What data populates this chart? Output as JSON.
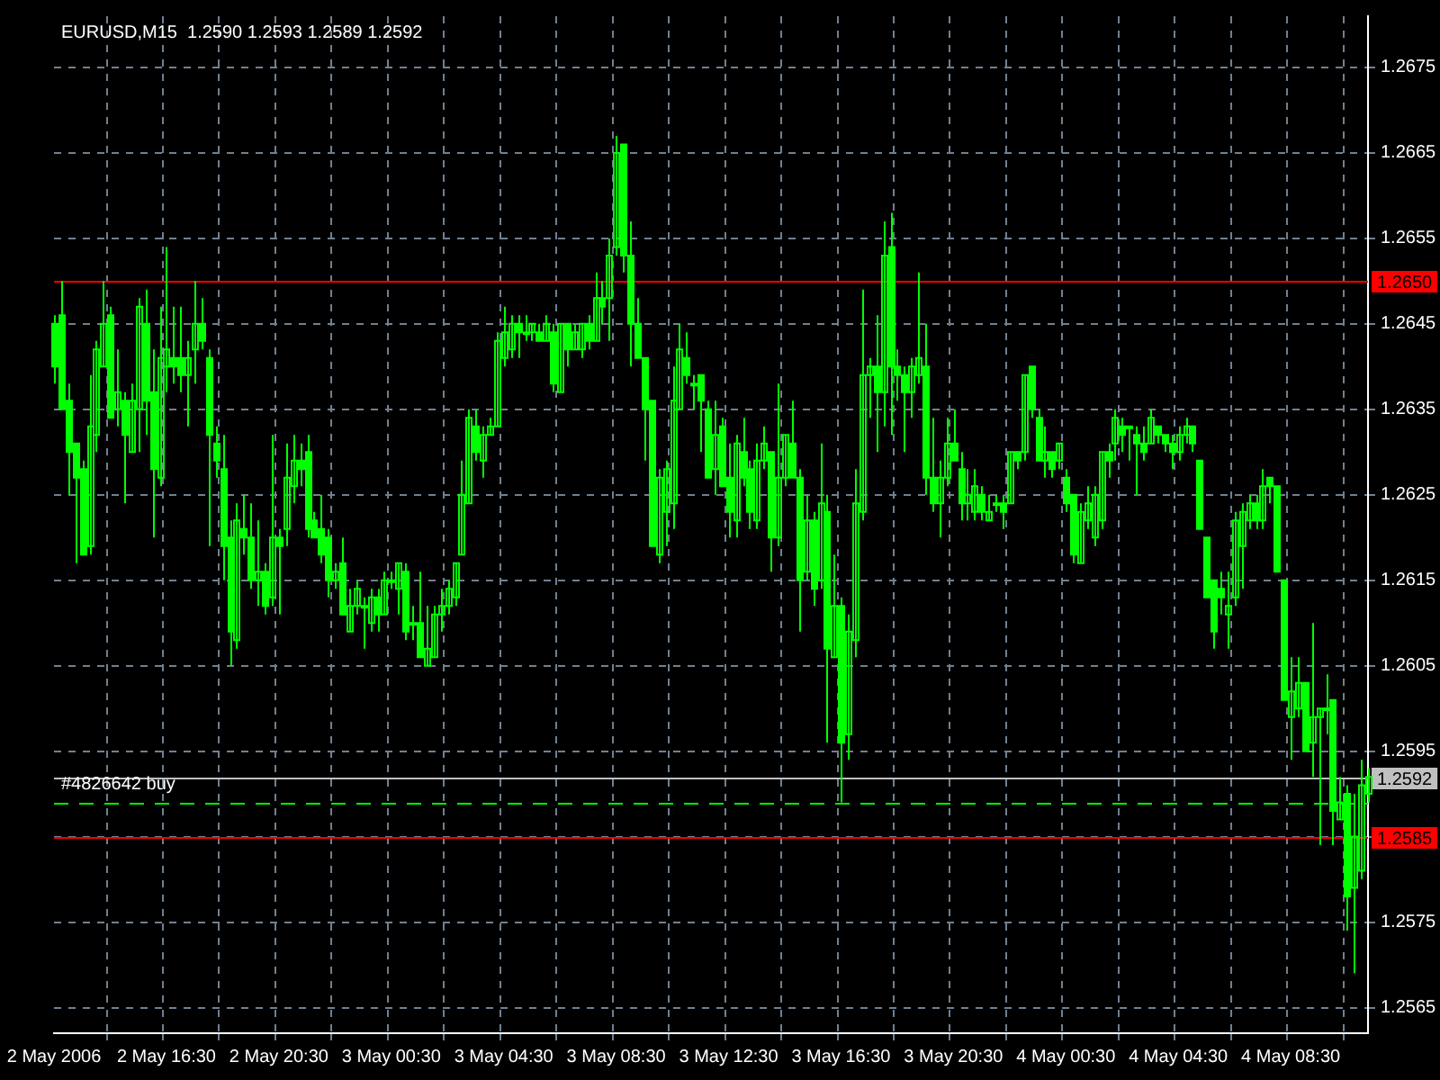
{
  "chart_data": {
    "type": "candlestick",
    "title": "EURUSD,M15  1.2590 1.2593 1.2589 1.2592",
    "categories": [
      "2 May 2006",
      null,
      null,
      null,
      null,
      null,
      null,
      null,
      null,
      null,
      null,
      null,
      null,
      null,
      null,
      null,
      "2 May 16:30",
      null,
      null,
      null,
      null,
      null,
      null,
      null,
      null,
      null,
      null,
      null,
      null,
      null,
      null,
      null,
      "2 May 20:30",
      null,
      null,
      null,
      null,
      null,
      null,
      null,
      null,
      null,
      null,
      null,
      null,
      null,
      null,
      null,
      "3 May 00:30",
      null,
      null,
      null,
      null,
      null,
      null,
      null,
      null,
      null,
      null,
      null,
      null,
      null,
      null,
      null,
      "3 May 04:30",
      null,
      null,
      null,
      null,
      null,
      null,
      null,
      null,
      null,
      null,
      null,
      null,
      null,
      null,
      null,
      "3 May 08:30",
      null,
      null,
      null,
      null,
      null,
      null,
      null,
      null,
      null,
      null,
      null,
      null,
      null,
      null,
      null,
      "3 May 12:30",
      null,
      null,
      null,
      null,
      null,
      null,
      null,
      null,
      null,
      null,
      null,
      null,
      null,
      null,
      null,
      "3 May 16:30",
      null,
      null,
      null,
      null,
      null,
      null,
      null,
      null,
      null,
      null,
      null,
      null,
      null,
      null,
      null,
      "3 May 20:30",
      null,
      null,
      null,
      null,
      null,
      null,
      null,
      null,
      null,
      null,
      null,
      null,
      null,
      null,
      null,
      "4 May 00:30",
      null,
      null,
      null,
      null,
      null,
      null,
      null,
      null,
      null,
      null,
      null,
      null,
      null,
      null,
      null,
      "4 May 04:30",
      null,
      null,
      null,
      null,
      null,
      null,
      null,
      null,
      null,
      null,
      null,
      null,
      null,
      null,
      null,
      "4 May 08:30",
      null,
      null,
      null,
      null,
      null,
      null,
      null,
      null,
      null,
      null,
      null
    ],
    "color": "#00ff00",
    "ohlc": [
      [
        1.2645,
        1.2646,
        1.2638,
        1.264
      ],
      [
        1.2646,
        1.265,
        1.2635,
        1.2635
      ],
      [
        1.2636,
        1.2638,
        1.2625,
        1.263
      ],
      [
        1.2631,
        1.2631,
        1.2617,
        1.2627
      ],
      [
        1.2628,
        1.2629,
        1.2618,
        1.2618
      ],
      [
        1.2619,
        1.2639,
        1.2618,
        1.2633
      ],
      [
        1.2632,
        1.2643,
        1.263,
        1.2642
      ],
      [
        1.264,
        1.265,
        1.264,
        1.2645
      ],
      [
        1.2646,
        1.2647,
        1.2634,
        1.2634
      ],
      [
        1.2635,
        1.2642,
        1.2633,
        1.2637
      ],
      [
        1.2636,
        1.2637,
        1.2624,
        1.2632
      ],
      [
        1.263,
        1.2638,
        1.263,
        1.2636
      ],
      [
        1.2635,
        1.2648,
        1.263,
        1.2647
      ],
      [
        1.2645,
        1.2649,
        1.2632,
        1.2636
      ],
      [
        1.2637,
        1.2642,
        1.262,
        1.2628
      ],
      [
        1.2627,
        1.2647,
        1.2626,
        1.2641
      ],
      [
        1.264,
        1.2654,
        1.2637,
        1.2642
      ],
      [
        1.2641,
        1.2647,
        1.2638,
        1.264
      ],
      [
        1.2641,
        1.2647,
        1.2637,
        1.2639
      ],
      [
        1.2639,
        1.2643,
        1.2633,
        1.2641
      ],
      [
        1.2642,
        1.265,
        1.2638,
        1.2645
      ],
      [
        1.2645,
        1.2648,
        1.2642,
        1.2643
      ],
      [
        1.2641,
        1.2642,
        1.2619,
        1.2632
      ],
      [
        1.2631,
        1.2633,
        1.2627,
        1.2629
      ],
      [
        1.2628,
        1.2632,
        1.2615,
        1.2619
      ],
      [
        1.262,
        1.2622,
        1.2605,
        1.2609
      ],
      [
        1.2608,
        1.2624,
        1.2607,
        1.2622
      ],
      [
        1.2621,
        1.2625,
        1.2618,
        1.262
      ],
      [
        1.262,
        1.2624,
        1.2614,
        1.2615
      ],
      [
        1.2615,
        1.2622,
        1.2612,
        1.2616
      ],
      [
        1.2616,
        1.2617,
        1.2611,
        1.2612
      ],
      [
        1.2613,
        1.2632,
        1.2612,
        1.262
      ],
      [
        1.262,
        1.2621,
        1.2611,
        1.2619
      ],
      [
        1.2621,
        1.2631,
        1.2619,
        1.2627
      ],
      [
        1.2626,
        1.2632,
        1.2624,
        1.2629
      ],
      [
        1.2629,
        1.2631,
        1.2626,
        1.2628
      ],
      [
        1.263,
        1.2632,
        1.262,
        1.2621
      ],
      [
        1.2622,
        1.2623,
        1.262,
        1.262
      ],
      [
        1.2621,
        1.2625,
        1.2617,
        1.2618
      ],
      [
        1.262,
        1.2621,
        1.2613,
        1.2615
      ],
      [
        1.2615,
        1.2617,
        1.2614,
        1.2616
      ],
      [
        1.2617,
        1.262,
        1.2611,
        1.2611
      ],
      [
        1.2609,
        1.2614,
        1.2609,
        1.2612
      ],
      [
        1.2612,
        1.2615,
        1.2611,
        1.2614
      ],
      [
        1.2612,
        1.2613,
        1.2607,
        1.2612
      ],
      [
        1.261,
        1.2614,
        1.2609,
        1.2613
      ],
      [
        1.2613,
        1.2614,
        1.2609,
        1.2611
      ],
      [
        1.2611,
        1.2616,
        1.2611,
        1.2615
      ],
      [
        1.2615,
        1.2616,
        1.2614,
        1.2615
      ],
      [
        1.2614,
        1.2617,
        1.2611,
        1.2617
      ],
      [
        1.2616,
        1.2617,
        1.2608,
        1.2609
      ],
      [
        1.261,
        1.2612,
        1.2608,
        1.261
      ],
      [
        1.261,
        1.2616,
        1.2606,
        1.2606
      ],
      [
        1.2605,
        1.2612,
        1.2605,
        1.2607
      ],
      [
        1.2606,
        1.2612,
        1.2606,
        1.2611
      ],
      [
        1.2611,
        1.2614,
        1.2609,
        1.2612
      ],
      [
        1.2612,
        1.2615,
        1.2611,
        1.2614
      ],
      [
        1.2613,
        1.2617,
        1.2612,
        1.2617
      ],
      [
        1.2618,
        1.2629,
        1.2618,
        1.2625
      ],
      [
        1.2624,
        1.2635,
        1.2624,
        1.2634
      ],
      [
        1.2633,
        1.2635,
        1.2629,
        1.263
      ],
      [
        1.2629,
        1.2633,
        1.2627,
        1.2632
      ],
      [
        1.2632,
        1.2634,
        1.2632,
        1.2633
      ],
      [
        1.2633,
        1.2644,
        1.2633,
        1.2643
      ],
      [
        1.2641,
        1.2647,
        1.264,
        1.2644
      ],
      [
        1.2642,
        1.2646,
        1.2641,
        1.2645
      ],
      [
        1.2645,
        1.2646,
        1.2641,
        1.2644
      ],
      [
        1.2644,
        1.2646,
        1.2643,
        1.2644
      ],
      [
        1.2644,
        1.2645,
        1.2643,
        1.2645
      ],
      [
        1.2644,
        1.2645,
        1.2643,
        1.2643
      ],
      [
        1.2643,
        1.2646,
        1.2643,
        1.2645
      ],
      [
        1.2644,
        1.2645,
        1.2637,
        1.2638
      ],
      [
        1.2637,
        1.2645,
        1.2637,
        1.2645
      ],
      [
        1.2645,
        1.2645,
        1.264,
        1.2642
      ],
      [
        1.2642,
        1.2645,
        1.2642,
        1.2644
      ],
      [
        1.2642,
        1.2645,
        1.2641,
        1.2645
      ],
      [
        1.2645,
        1.2646,
        1.2642,
        1.2643
      ],
      [
        1.2643,
        1.2651,
        1.2643,
        1.2648
      ],
      [
        1.2648,
        1.265,
        1.2645,
        1.2647
      ],
      [
        1.2648,
        1.2655,
        1.2643,
        1.2653
      ],
      [
        1.2654,
        1.2667,
        1.2653,
        1.2665
      ],
      [
        1.2666,
        1.2666,
        1.2651,
        1.2653
      ],
      [
        1.2653,
        1.2657,
        1.264,
        1.2645
      ],
      [
        1.2645,
        1.2648,
        1.2641,
        1.2641
      ],
      [
        1.2641,
        1.2641,
        1.2629,
        1.2635
      ],
      [
        1.2636,
        1.2636,
        1.2619,
        1.2619
      ],
      [
        1.2618,
        1.2628,
        1.2617,
        1.2627
      ],
      [
        1.2623,
        1.2629,
        1.2619,
        1.2628
      ],
      [
        1.2624,
        1.264,
        1.2621,
        1.2636
      ],
      [
        1.2635,
        1.2645,
        1.2635,
        1.2642
      ],
      [
        1.2641,
        1.2644,
        1.2638,
        1.2639
      ],
      [
        1.2638,
        1.2639,
        1.2635,
        1.2638
      ],
      [
        1.2639,
        1.2639,
        1.263,
        1.2636
      ],
      [
        1.2635,
        1.2636,
        1.2627,
        1.2627
      ],
      [
        1.2628,
        1.2636,
        1.2625,
        1.2632
      ],
      [
        1.2633,
        1.2634,
        1.2626,
        1.2626
      ],
      [
        1.2627,
        1.2631,
        1.262,
        1.2623
      ],
      [
        1.2622,
        1.2632,
        1.262,
        1.2631
      ],
      [
        1.263,
        1.2634,
        1.2626,
        1.2627
      ],
      [
        1.2628,
        1.2629,
        1.2621,
        1.2623
      ],
      [
        1.2622,
        1.2631,
        1.2621,
        1.2629
      ],
      [
        1.2629,
        1.2633,
        1.2628,
        1.2631
      ],
      [
        1.263,
        1.263,
        1.2616,
        1.262
      ],
      [
        1.262,
        1.2638,
        1.2619,
        1.2627
      ],
      [
        1.2627,
        1.2632,
        1.2626,
        1.2632
      ],
      [
        1.2631,
        1.2636,
        1.2627,
        1.2627
      ],
      [
        1.2627,
        1.2628,
        1.2609,
        1.2615
      ],
      [
        1.2616,
        1.2625,
        1.2615,
        1.2622
      ],
      [
        1.2622,
        1.2623,
        1.2612,
        1.2614
      ],
      [
        1.2615,
        1.2631,
        1.2614,
        1.2624
      ],
      [
        1.2623,
        1.2625,
        1.2596,
        1.2607
      ],
      [
        1.2606,
        1.2618,
        1.2606,
        1.2612
      ],
      [
        1.2612,
        1.2613,
        1.2589,
        1.2596
      ],
      [
        1.2597,
        1.2611,
        1.2594,
        1.2609
      ],
      [
        1.2608,
        1.2628,
        1.2606,
        1.2624
      ],
      [
        1.2623,
        1.2649,
        1.2622,
        1.2639
      ],
      [
        1.2639,
        1.2641,
        1.2634,
        1.264
      ],
      [
        1.264,
        1.2646,
        1.263,
        1.2637
      ],
      [
        1.2637,
        1.2657,
        1.2633,
        1.2653
      ],
      [
        1.2654,
        1.2658,
        1.2632,
        1.264
      ],
      [
        1.264,
        1.2642,
        1.2636,
        1.2639
      ],
      [
        1.2639,
        1.264,
        1.263,
        1.2637
      ],
      [
        1.2637,
        1.2641,
        1.2634,
        1.264
      ],
      [
        1.2639,
        1.2651,
        1.2638,
        1.2641
      ],
      [
        1.264,
        1.2645,
        1.2625,
        1.2627
      ],
      [
        1.2627,
        1.2634,
        1.2623,
        1.2624
      ],
      [
        1.2624,
        1.2629,
        1.262,
        1.2627
      ],
      [
        1.2627,
        1.2634,
        1.2626,
        1.2631
      ],
      [
        1.2631,
        1.2635,
        1.2629,
        1.2629
      ],
      [
        1.2628,
        1.263,
        1.2622,
        1.2624
      ],
      [
        1.2624,
        1.2628,
        1.2622,
        1.2625
      ],
      [
        1.2623,
        1.2628,
        1.2622,
        1.2626
      ],
      [
        1.2625,
        1.2626,
        1.2622,
        1.2623
      ],
      [
        1.2622,
        1.2625,
        1.2622,
        1.2623
      ],
      [
        1.2624,
        1.2625,
        1.2623,
        1.2624
      ],
      [
        1.2624,
        1.2625,
        1.2621,
        1.2623
      ],
      [
        1.2624,
        1.263,
        1.2624,
        1.263
      ],
      [
        1.263,
        1.263,
        1.2628,
        1.2629
      ],
      [
        1.263,
        1.2639,
        1.2629,
        1.2639
      ],
      [
        1.264,
        1.264,
        1.2634,
        1.2635
      ],
      [
        1.2634,
        1.2635,
        1.2629,
        1.2629
      ],
      [
        1.2629,
        1.2633,
        1.2627,
        1.263
      ],
      [
        1.263,
        1.263,
        1.2627,
        1.2628
      ],
      [
        1.2629,
        1.2631,
        1.2628,
        1.2631
      ],
      [
        1.2627,
        1.2628,
        1.2623,
        1.2624
      ],
      [
        1.2625,
        1.2625,
        1.2617,
        1.2618
      ],
      [
        1.2617,
        1.2624,
        1.2617,
        1.2623
      ],
      [
        1.2622,
        1.2626,
        1.2621,
        1.2624
      ],
      [
        1.262,
        1.2626,
        1.2619,
        1.2625
      ],
      [
        1.2622,
        1.263,
        1.2621,
        1.263
      ],
      [
        1.263,
        1.2631,
        1.2627,
        1.2629
      ],
      [
        1.2631,
        1.2635,
        1.2629,
        1.2634
      ],
      [
        1.2633,
        1.2634,
        1.263,
        1.2632
      ],
      [
        1.2633,
        1.2633,
        1.2629,
        1.2633
      ],
      [
        1.2632,
        1.2633,
        1.2625,
        1.2631
      ],
      [
        1.2631,
        1.2633,
        1.2629,
        1.263
      ],
      [
        1.2631,
        1.2635,
        1.2631,
        1.2634
      ],
      [
        1.2633,
        1.2633,
        1.2631,
        1.2632
      ],
      [
        1.2632,
        1.2632,
        1.263,
        1.2631
      ],
      [
        1.2631,
        1.2632,
        1.2628,
        1.263
      ],
      [
        1.263,
        1.2633,
        1.2629,
        1.2632
      ],
      [
        1.2632,
        1.2634,
        1.2631,
        1.2633
      ],
      [
        1.2633,
        1.2633,
        1.263,
        1.2631
      ],
      [
        1.2629,
        1.2629,
        1.2621,
        1.2621
      ],
      [
        1.262,
        1.262,
        1.2613,
        1.2613
      ],
      [
        1.2615,
        1.2615,
        1.2607,
        1.2609
      ],
      [
        1.2614,
        1.2616,
        1.2611,
        1.2613
      ],
      [
        1.2611,
        1.2616,
        1.2607,
        1.2612
      ],
      [
        1.2613,
        1.2623,
        1.2612,
        1.2622
      ],
      [
        1.2619,
        1.2624,
        1.2614,
        1.2623
      ],
      [
        1.2622,
        1.2625,
        1.2621,
        1.2624
      ],
      [
        1.2624,
        1.2625,
        1.2621,
        1.2622
      ],
      [
        1.2622,
        1.2628,
        1.2621,
        1.2626
      ],
      [
        1.2627,
        1.2627,
        1.2624,
        1.2626
      ],
      [
        1.2626,
        1.2626,
        1.2616,
        1.2616
      ],
      [
        1.2615,
        1.2615,
        1.2601,
        1.2601
      ],
      [
        1.2599,
        1.2606,
        1.2594,
        1.2602
      ],
      [
        1.26,
        1.2606,
        1.2599,
        1.2603
      ],
      [
        1.2603,
        1.2603,
        1.2595,
        1.2595
      ],
      [
        1.2596,
        1.261,
        1.2592,
        1.2599
      ],
      [
        1.2599,
        1.26,
        1.2584,
        1.26
      ],
      [
        1.26,
        1.2604,
        1.2597,
        1.26
      ],
      [
        1.2601,
        1.2601,
        1.2584,
        1.2588
      ],
      [
        1.2587,
        1.2592,
        1.2587,
        1.2589
      ],
      [
        1.259,
        1.2591,
        1.2574,
        1.2578
      ],
      [
        1.2579,
        1.259,
        1.2569,
        1.2585
      ],
      [
        1.2581,
        1.2594,
        1.258,
        1.2591
      ],
      [
        1.259,
        1.2593,
        1.2589,
        1.2592
      ]
    ],
    "ylim": [
      1.2562,
      1.2681
    ],
    "yticks": [
      1.2565,
      1.2575,
      {
        "value": 1.2585,
        "label": null
      },
      1.2595,
      1.2605,
      1.2615,
      1.2625,
      1.2635,
      1.2645,
      1.2655,
      1.2665,
      1.2675
    ],
    "ref_lines": [
      {
        "axis": "y",
        "value": 1.265,
        "label": "1.2650",
        "color": "#ff0000"
      },
      {
        "axis": "y",
        "value": 1.2592,
        "label": "1.2592",
        "color": "#c0c0c0"
      },
      {
        "axis": "y",
        "value": 1.2589,
        "label": "#4826642 buy",
        "color": "#00ff00",
        "line_style": "dashed"
      },
      {
        "axis": "y",
        "value": 1.2585,
        "label": "1.2585",
        "color": "#ff0000"
      }
    ],
    "grid": true
  }
}
